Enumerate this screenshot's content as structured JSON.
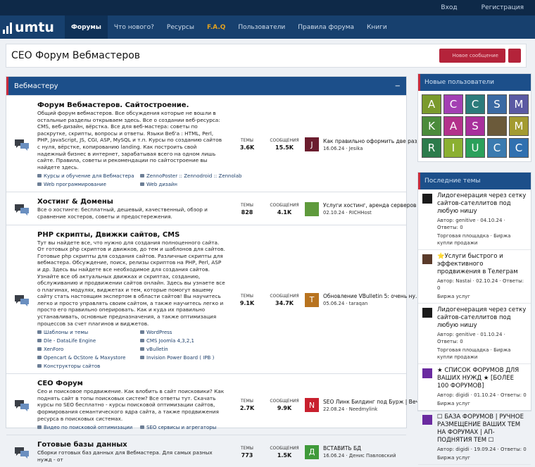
{
  "header": {
    "logo": "umtu",
    "login": "Вход",
    "register": "Регистрация",
    "nav": [
      "Форумы",
      "Что нового?",
      "Ресурсы",
      "F.A.Q",
      "Пользователи",
      "Правила форума",
      "Книги"
    ]
  },
  "page": {
    "title": "СЕО Форум Вебмастеров",
    "new_post": "Новое сообщение"
  },
  "category": {
    "title": "Вебмастеру",
    "collapse": "−",
    "forums": [
      {
        "title": "Форум Вебмастеров. Сайтостроение.",
        "description": "Общий форум вебмастеров. Все обсуждения которые не вошли в остальные разделы открываем здесь. Все о создании веб-ресурса: CMS, веб-дизайн, вёрстка. Все для веб-мастера: советы по раскрутке, скрипты, вопросы и ответы. Языки Веб'а : HTML, Perl, PHP, JavaScript, JS, CGI, ASP, MySQL и т.п. Курсы по созданию сайтов с нуля, вёрстке, копированию landing. Как построить свой надежный бизнес в интернет, зарабатывая всего на одном лишь сайте. Правила, советы и рекомендации по сайтостроение вы найдете здесь.",
        "threads_label": "ТЕМЫ",
        "threads": "3.6K",
        "posts_label": "СООБЩЕНИЯ",
        "posts": "15.5K",
        "last_title": "Как правильно оформить две разд...",
        "last_date": "16.06.24",
        "last_user": "Jesika",
        "avatar": "J",
        "avatar_color": "#6b1d2e",
        "subforums": [
          "Курсы и обучение для Вебмастера",
          "ZennoPoster :: Zennodroid :: Zennolab",
          "Web программирование",
          "Web дизайн"
        ]
      },
      {
        "title": "Хостинг & Домены",
        "description": "Все о хостинге: бесплатный, дешевый, качественный, обзор и сравнение хостеров, советы и предостережения.",
        "threads_label": "ТЕМЫ",
        "threads": "828",
        "posts_label": "СООБЩЕНИЯ",
        "posts": "4.1K",
        "last_title": "Услуги хостинг, аренда серверов С...",
        "last_date": "02.10.24",
        "last_user": "RICHHost",
        "avatar": "",
        "avatar_color": "#5f9a3c",
        "subforums": []
      },
      {
        "title": "PHP скрипты, Движки сайтов, CMS",
        "description": "Тут вы найдете все, что нужно для создания полноценного сайта. От готовых php скриптов и движков, до тем и шаблонов для сайтов. Готовые php скрипты для создания сайтов. Различные скрипты для вебмастера. Обсуждение, поиск, релизы скриптов на PHP, Perl, ASP и др. Здесь вы найдете все необходимое для создания сайтов. Узнайте все об актуальных движках и скриптах, созданию, обслуживанию и продвижении сайтов онлайн. Здесь вы узнаете все о плагинах, модулях, виджетах и тем, которые помогут вашему сайту стать настоящим экспертом в области сайтов! Вы научитесь легко и просто управлять своим сайтом, а также научитесь легко и просто его правильно оперировать. Как и куда их правильно устанавливать, основные предназначения, а также оптимизация процессов за счет плагинов и виджетов.",
        "threads_label": "ТЕМЫ",
        "threads": "9.1K",
        "posts_label": "СООБЩЕНИЯ",
        "posts": "34.7K",
        "last_title": "Обновление VBulletin 5: очень ну...",
        "last_date": "05.06.24",
        "last_user": "taraqan",
        "avatar": "T",
        "avatar_color": "#b8731f",
        "subforums": [
          "Шаблоны и темы",
          "WordPress",
          "Dle - DataLife Engine",
          "CMS Joomla 4,3,2,1",
          "XenForo",
          "vBulletin",
          "Opencart & OcStore & Maxystore",
          "Invision Power Board ( IPB )",
          "Конструкторы сайтов"
        ]
      },
      {
        "title": "СЕО Форум",
        "description": "Сео и поисковое продвижение. Как влобить в сайт поисковики? Как поднять сайт в топы поисковых систем? Все ответы тут. Скачать курсы по SEO бесплатно - курсы поисковой оптимизации сайтов, формирования семантического ядра сайта, а также продвижения ресурса в поисковых системах.",
        "threads_label": "ТЕМЫ",
        "threads": "2.7K",
        "posts_label": "СООБЩЕНИЯ",
        "posts": "9.9K",
        "last_title": "SEO Линк Билдинг под Бурж | Веч...",
        "last_date": "22.08.24",
        "last_user": "Needmylink",
        "avatar": "N",
        "avatar_color": "#c8202e",
        "subforums": [
          "Видео по поисковой оптимизации",
          "SEO сервисы и агрегаторы"
        ]
      },
      {
        "title": "Готовые базы данных",
        "description": "Сборки готовых баз данных для Вебмастера. Для самых разных нужд - от",
        "threads_label": "ТЕМЫ",
        "threads": "773",
        "posts_label": "СООБЩЕНИЯ",
        "posts": "1.5K",
        "last_title": "ВСТАВИТЬ БД",
        "last_date": "16.06.24",
        "last_user": "Денис Павловский",
        "avatar": "Д",
        "avatar_color": "#3f9a3a",
        "subforums": []
      }
    ]
  },
  "sidebar": {
    "new_users_title": "Новые пользователи",
    "users": [
      {
        "letter": "A",
        "color": "#7a9a2c"
      },
      {
        "letter": "C",
        "color": "#a33fb3"
      },
      {
        "letter": "C",
        "color": "#2c7b7b"
      },
      {
        "letter": "S",
        "color": "#3b6aa3"
      },
      {
        "letter": "M",
        "color": "#5b5aa3"
      },
      {
        "letter": "K",
        "color": "#4b8b3b"
      },
      {
        "letter": "A",
        "color": "#b3318b"
      },
      {
        "letter": "S",
        "color": "#a8309c"
      },
      {
        "letter": "",
        "color": "#6b5a3a"
      },
      {
        "letter": "M",
        "color": "#a39b31"
      },
      {
        "letter": "R",
        "color": "#2b7b4b"
      },
      {
        "letter": "I",
        "color": "#8bb031"
      },
      {
        "letter": "U",
        "color": "#2ba05b"
      },
      {
        "letter": "C",
        "color": "#3b7bb0"
      },
      {
        "letter": "C",
        "color": "#3070b0"
      }
    ],
    "latest_title": "Последние темы",
    "topics": [
      {
        "title": "Лидогенерация через сетку сайтов-сателлитов под любую нишу",
        "meta": "Автор: genitive · 04.10.24 · Ответы: 0",
        "forum": "Торговая площадка · Биржа купли продажи",
        "color": "#1a1a1a"
      },
      {
        "title": "⭐Услуги быстрого и эффективного продвижения в Телеграм",
        "meta": "Автор: Nastai · 02.10.24 · Ответы: 0",
        "forum": "Биржа услуг",
        "color": "#5a3a2a"
      },
      {
        "title": "Лидогенерация через сетку сайтов-сателлитов под любую нишу",
        "meta": "Автор: genitive · 01.10.24 · Ответы: 0",
        "forum": "Торговая площадка · Биржа купли продажи",
        "color": "#1a1a1a"
      },
      {
        "title": "★ СПИСОК ФОРУМОВ ДЛЯ ВАШИХ НУЖД ★ [БОЛЕЕ 100 ФОРУМОВ]",
        "meta": "Автор: digidi · 01.10.24 · Ответы: 0",
        "forum": "Биржа услуг",
        "color": "#6a2aa0"
      },
      {
        "title": "☐ БАЗА ФОРУМОВ | РУЧНОЕ РАЗМЕЩЕНИЕ ВАШИХ ТЕМ НА ФОРУМАХ | АП-ПОДНЯТИЯ ТЕМ ☐",
        "meta": "Автор: digidi · 19.09.24 · Ответы: 0",
        "forum": "Биржа услуг",
        "color": "#6a2aa0"
      }
    ]
  }
}
